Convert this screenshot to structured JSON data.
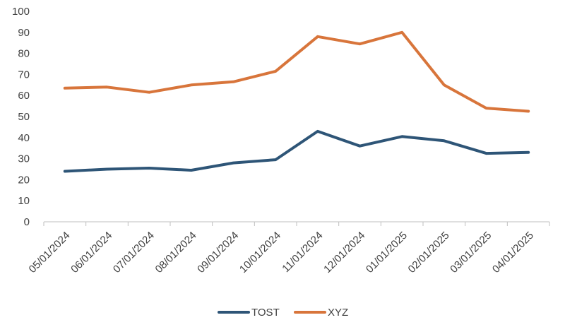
{
  "chart_data": {
    "type": "line",
    "categories": [
      "05/01/2024",
      "06/01/2024",
      "07/01/2024",
      "08/01/2024",
      "09/01/2024",
      "10/01/2024",
      "11/01/2024",
      "12/01/2024",
      "01/01/2025",
      "02/01/2025",
      "03/01/2025",
      "04/01/2025"
    ],
    "series": [
      {
        "name": "TOST",
        "color": "#2e5577",
        "values": [
          24,
          25,
          25.5,
          24.5,
          28,
          29.5,
          43,
          36,
          40.5,
          38.5,
          32.5,
          33
        ]
      },
      {
        "name": "XYZ",
        "color": "#d8753b",
        "values": [
          63.5,
          64,
          61.5,
          65,
          66.5,
          71.5,
          88,
          84.5,
          90,
          65,
          54,
          52.5
        ]
      }
    ],
    "yticks": [
      "0",
      "10",
      "20",
      "30",
      "40",
      "50",
      "60",
      "70",
      "80",
      "90",
      "100"
    ],
    "ylim": [
      0,
      100
    ],
    "grid": false,
    "legend": "bottom",
    "title": "",
    "xlabel": "",
    "ylabel": ""
  }
}
